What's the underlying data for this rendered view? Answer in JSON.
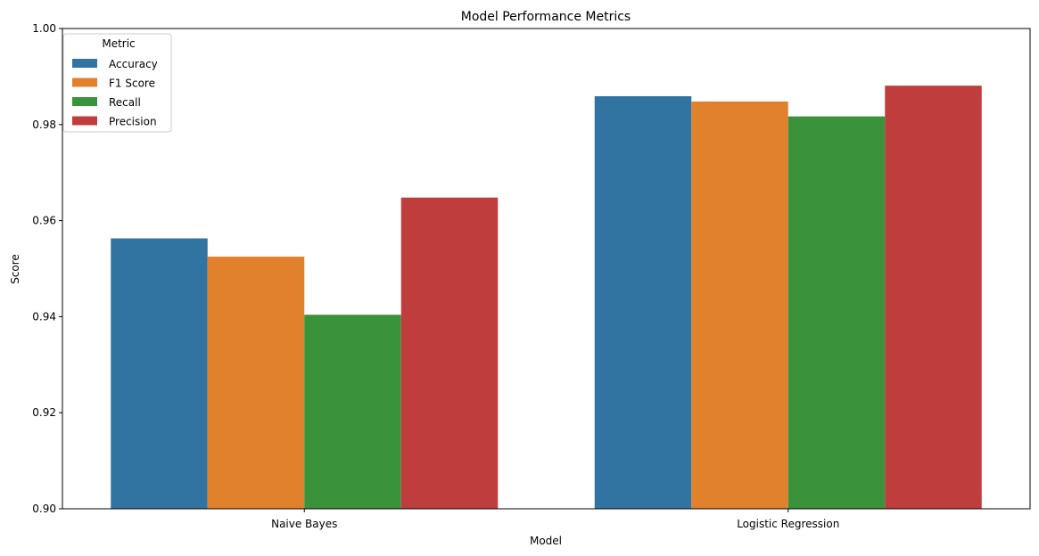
{
  "chart_data": {
    "type": "bar",
    "title": "Model Performance Metrics",
    "xlabel": "Model",
    "ylabel": "Score",
    "categories": [
      "Naive Bayes",
      "Logistic Regression"
    ],
    "ylim": [
      0.9,
      1.0
    ],
    "yticks": [
      "0.90",
      "0.92",
      "0.94",
      "0.96",
      "0.98",
      "1.00"
    ],
    "series": [
      {
        "name": "Accuracy",
        "color": "#3274a1",
        "values": [
          0.9563,
          0.9859
        ]
      },
      {
        "name": "F1 Score",
        "color": "#e1812c",
        "values": [
          0.9525,
          0.9848
        ]
      },
      {
        "name": "Recall",
        "color": "#3a923a",
        "values": [
          0.9404,
          0.9817
        ]
      },
      {
        "name": "Precision",
        "color": "#c03d3e",
        "values": [
          0.9648,
          0.9881
        ]
      }
    ],
    "legend": {
      "title": "Metric",
      "placement": "top-left"
    },
    "grid": false
  }
}
